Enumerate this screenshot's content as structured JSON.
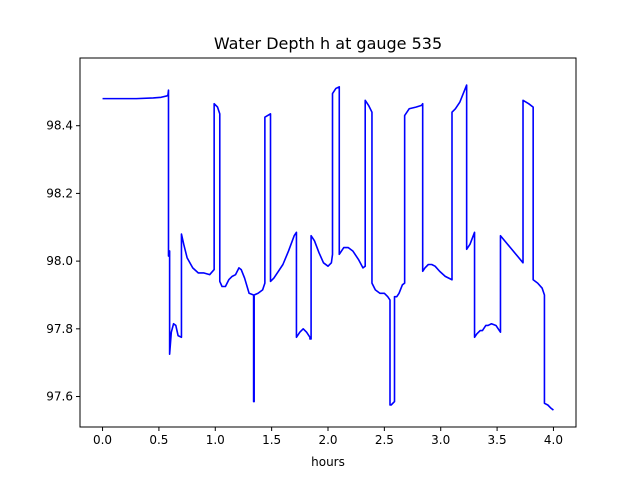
{
  "chart_data": {
    "type": "line",
    "title": "Water Depth h at gauge 535",
    "xlabel": "hours",
    "ylabel": "",
    "xlim": [
      -0.2,
      4.2
    ],
    "ylim": [
      97.51,
      98.6
    ],
    "xticks": [
      0.0,
      0.5,
      1.0,
      1.5,
      2.0,
      2.5,
      3.0,
      3.5,
      4.0
    ],
    "xtick_labels": [
      "0.0",
      "0.5",
      "1.0",
      "1.5",
      "2.0",
      "2.5",
      "3.0",
      "3.5",
      "4.0"
    ],
    "yticks": [
      97.6,
      97.8,
      98.0,
      98.2,
      98.4
    ],
    "ytick_labels": [
      "97.6",
      "97.8",
      "98.0",
      "98.2",
      "98.4"
    ],
    "grid": false,
    "legend": "none",
    "series": [
      {
        "color": "#0000ff",
        "x": [
          0.0,
          0.3,
          0.45,
          0.52,
          0.57,
          0.58,
          0.585,
          0.585,
          0.59,
          0.595,
          0.595,
          0.61,
          0.63,
          0.65,
          0.67,
          0.7,
          0.7,
          0.72,
          0.75,
          0.8,
          0.85,
          0.9,
          0.95,
          0.99,
          0.99,
          1.02,
          1.04,
          1.04,
          1.06,
          1.09,
          1.12,
          1.15,
          1.18,
          1.21,
          1.23,
          1.26,
          1.3,
          1.34,
          1.34,
          1.345,
          1.345,
          1.38,
          1.42,
          1.44,
          1.44,
          1.49,
          1.49,
          1.52,
          1.56,
          1.6,
          1.65,
          1.7,
          1.72,
          1.72,
          1.75,
          1.78,
          1.81,
          1.84,
          1.84,
          1.85,
          1.85,
          1.88,
          1.92,
          1.96,
          2.0,
          2.03,
          2.04,
          2.04,
          2.07,
          2.1,
          2.1,
          2.12,
          2.14,
          2.18,
          2.22,
          2.27,
          2.31,
          2.33,
          2.33,
          2.36,
          2.39,
          2.39,
          2.42,
          2.46,
          2.5,
          2.53,
          2.55,
          2.55,
          2.56,
          2.59,
          2.59,
          2.61,
          2.63,
          2.66,
          2.68,
          2.68,
          2.72,
          2.78,
          2.83,
          2.84,
          2.84,
          2.86,
          2.89,
          2.92,
          2.95,
          2.99,
          3.04,
          3.1,
          3.1,
          3.13,
          3.17,
          3.23,
          3.23,
          3.26,
          3.3,
          3.3,
          3.32,
          3.35,
          3.37,
          3.4,
          3.42,
          3.45,
          3.49,
          3.53,
          3.53,
          3.58,
          3.63,
          3.68,
          3.73,
          3.73,
          3.78,
          3.82,
          3.82,
          3.86,
          3.9,
          3.92,
          3.92,
          3.95,
          3.98,
          4.0
        ],
        "y": [
          98.48,
          98.48,
          98.482,
          98.484,
          98.488,
          98.49,
          98.505,
          98.015,
          98.03,
          98.03,
          97.725,
          97.79,
          97.815,
          97.81,
          97.78,
          97.775,
          98.08,
          98.05,
          98.01,
          97.98,
          97.965,
          97.965,
          97.96,
          97.975,
          98.465,
          98.455,
          98.435,
          97.94,
          97.925,
          97.925,
          97.945,
          97.955,
          97.96,
          97.98,
          97.975,
          97.95,
          97.905,
          97.9,
          97.585,
          97.585,
          97.9,
          97.905,
          97.915,
          97.935,
          98.425,
          98.435,
          97.94,
          97.95,
          97.97,
          97.99,
          98.03,
          98.075,
          98.085,
          97.775,
          97.79,
          97.8,
          97.79,
          97.775,
          97.77,
          97.77,
          98.075,
          98.06,
          98.025,
          97.995,
          97.985,
          97.995,
          98.02,
          98.495,
          98.51,
          98.515,
          98.02,
          98.03,
          98.04,
          98.04,
          98.03,
          98.005,
          97.98,
          97.985,
          98.475,
          98.46,
          98.44,
          97.935,
          97.915,
          97.905,
          97.905,
          97.895,
          97.885,
          97.575,
          97.575,
          97.585,
          97.895,
          97.895,
          97.905,
          97.93,
          97.935,
          98.43,
          98.45,
          98.455,
          98.46,
          98.465,
          97.97,
          97.98,
          97.99,
          97.99,
          97.985,
          97.97,
          97.955,
          97.945,
          98.44,
          98.45,
          98.47,
          98.52,
          98.035,
          98.05,
          98.085,
          97.775,
          97.785,
          97.795,
          97.795,
          97.81,
          97.81,
          97.815,
          97.81,
          97.79,
          98.075,
          98.055,
          98.035,
          98.015,
          97.995,
          98.475,
          98.465,
          98.455,
          97.945,
          97.935,
          97.92,
          97.9,
          97.58,
          97.575,
          97.565,
          97.56
        ]
      }
    ]
  }
}
